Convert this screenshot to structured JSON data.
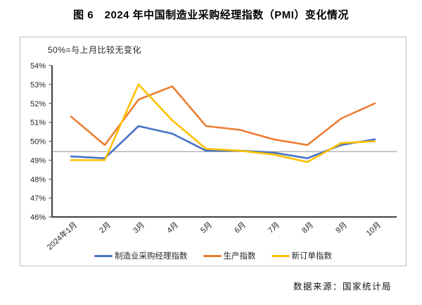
{
  "page": {
    "title": "图 6　2024 年中国制造业采购经理指数（PMI）变化情况",
    "source_note": "数据来源：国家统计局"
  },
  "chart_data": {
    "type": "line",
    "title": "图 6　2024 年中国制造业采购经理指数（PMI）变化情况",
    "annotation": "50%=与上月比较无变化",
    "categories": [
      "2024年1月",
      "2月",
      "3月",
      "4月",
      "5月",
      "6月",
      "7月",
      "8月",
      "9月",
      "10月"
    ],
    "series": [
      {
        "name": "制造业采购经理指数",
        "color": "#4472C4",
        "values": [
          49.2,
          49.1,
          50.8,
          50.4,
          49.5,
          49.5,
          49.4,
          49.1,
          49.8,
          50.1
        ]
      },
      {
        "name": "生产指数",
        "color": "#ED7D31",
        "values": [
          51.3,
          49.8,
          52.2,
          52.9,
          50.8,
          50.6,
          50.1,
          49.8,
          51.2,
          52.0
        ]
      },
      {
        "name": "新订单指数",
        "color": "#FFC000",
        "values": [
          49.0,
          49.0,
          53.0,
          51.1,
          49.6,
          49.5,
          49.3,
          48.9,
          49.9,
          50.0
        ]
      }
    ],
    "ylim": [
      46,
      54
    ],
    "ytick_step": 1,
    "ytick_labels": [
      "46%",
      "47%",
      "48%",
      "49%",
      "50%",
      "51%",
      "52%",
      "53%",
      "54%"
    ],
    "reference_line": 49.45,
    "grid": false,
    "legend_position": "bottom",
    "colors": {
      "axis": "#404040",
      "tick_text": "#262626",
      "reference_line": "#A6A6A6",
      "box_border": "#BFBFBF"
    }
  }
}
